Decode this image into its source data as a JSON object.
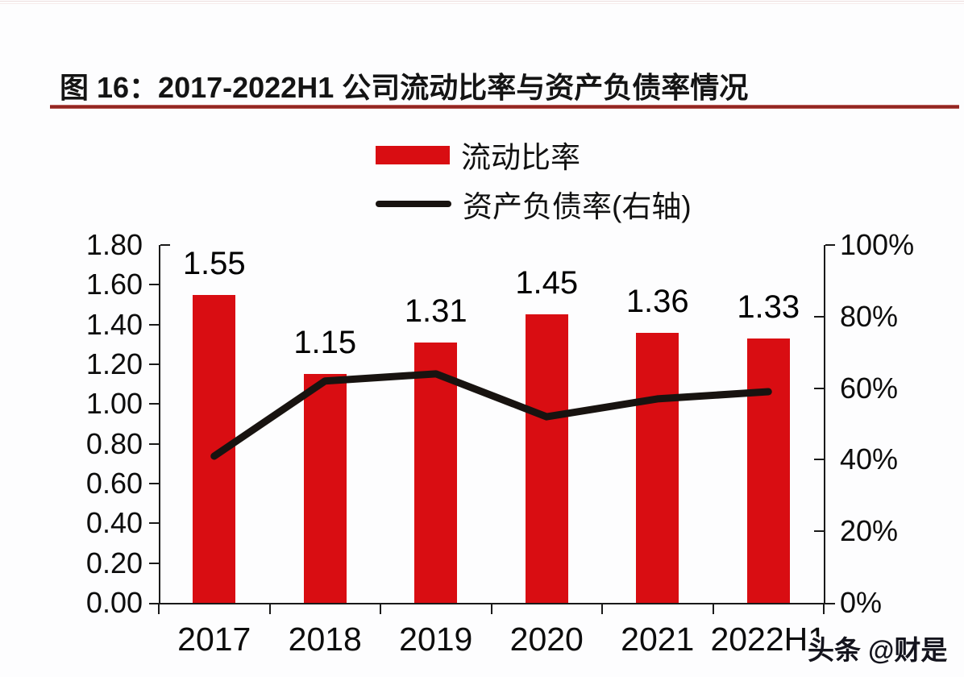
{
  "title": "图 16：2017-2022H1 公司流动比率与资产负债率情况",
  "watermark": "头条 @财是",
  "legend": [
    {
      "label": "流动比率",
      "type": "bar",
      "color": "#d90d12"
    },
    {
      "label": "资产负债率(右轴)",
      "type": "line",
      "color": "#181310"
    }
  ],
  "colors": {
    "bar_red": "#d90d12",
    "line_black": "#181310",
    "title_rule_red": "#96211d",
    "axis_black": "#1a1a1a"
  },
  "chart_data": {
    "type": "bar",
    "subtype": "bar-line-combo",
    "title": "图 16：2017-2022H1 公司流动比率与资产负债率情况",
    "categories": [
      "2017",
      "2018",
      "2019",
      "2020",
      "2021",
      "2022H1"
    ],
    "series": [
      {
        "name": "流动比率",
        "type": "bar",
        "axis": "left",
        "color": "#d90d12",
        "values": [
          1.55,
          1.15,
          1.31,
          1.45,
          1.36,
          1.33
        ],
        "data_labels": [
          "1.55",
          "1.15",
          "1.31",
          "1.45",
          "1.36",
          "1.33"
        ]
      },
      {
        "name": "资产负债率(右轴)",
        "type": "line",
        "axis": "right",
        "color": "#181310",
        "values_percent": [
          41,
          62,
          64,
          52,
          57,
          59
        ]
      }
    ],
    "left_axis": {
      "min": 0,
      "max": 1.8,
      "step": 0.2,
      "tick_labels": [
        "0.00",
        "0.20",
        "0.40",
        "0.60",
        "0.80",
        "1.00",
        "1.20",
        "1.40",
        "1.60",
        "1.80"
      ]
    },
    "right_axis": {
      "min": 0,
      "max": 100,
      "step": 20,
      "tick_labels": [
        "0%",
        "20%",
        "40%",
        "60%",
        "80%",
        "100%"
      ]
    },
    "grid": false,
    "legend_position": "top-center-stacked"
  }
}
